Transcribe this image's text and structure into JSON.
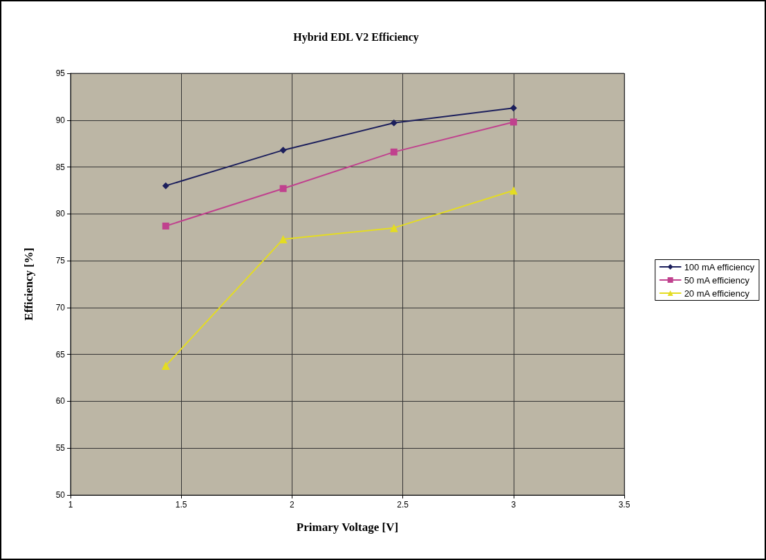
{
  "chart_data": {
    "type": "line",
    "title": "Hybrid EDL V2 Efficiency",
    "xlabel": "Primary Voltage [V]",
    "ylabel": "Efficiency [%]",
    "x": [
      1.43,
      1.96,
      2.46,
      3.0
    ],
    "series": [
      {
        "name": "100 mA efficiency",
        "color": "#1c1f5c",
        "marker": "diamond",
        "values": [
          83.0,
          86.8,
          89.7,
          91.3
        ]
      },
      {
        "name": "50 mA efficiency",
        "color": "#c0418e",
        "marker": "square",
        "values": [
          78.7,
          82.7,
          86.6,
          89.8
        ]
      },
      {
        "name": "20 mA efficiency",
        "color": "#e4dc22",
        "marker": "triangle",
        "values": [
          63.8,
          77.3,
          78.5,
          82.5
        ]
      }
    ],
    "xlim": [
      1,
      3.5
    ],
    "xticks": [
      1,
      1.5,
      2,
      2.5,
      3,
      3.5
    ],
    "ylim": [
      50,
      95
    ],
    "yticks": [
      50,
      55,
      60,
      65,
      70,
      75,
      80,
      85,
      90,
      95
    ],
    "grid": true,
    "legend": "right",
    "line_style": "solid"
  }
}
